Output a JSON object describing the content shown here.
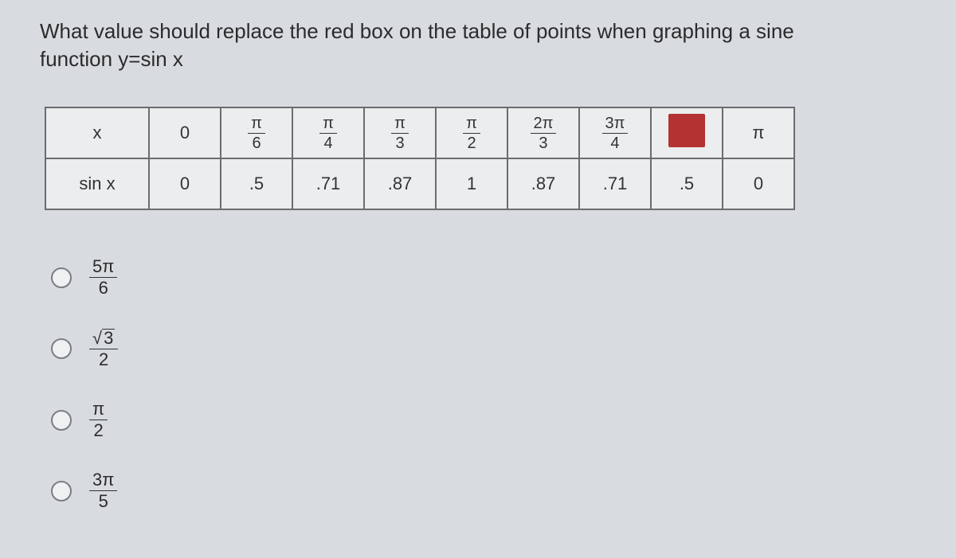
{
  "question": "What value should replace the red box on the table of points when graphing a sine function y=sin x",
  "table": {
    "row1_label": "x",
    "row2_label": "sin x",
    "x_values": [
      {
        "type": "plain",
        "text": "0"
      },
      {
        "type": "frac",
        "num": "π",
        "den": "6"
      },
      {
        "type": "frac",
        "num": "π",
        "den": "4"
      },
      {
        "type": "frac",
        "num": "π",
        "den": "3"
      },
      {
        "type": "frac",
        "num": "π",
        "den": "2"
      },
      {
        "type": "frac",
        "num": "2π",
        "den": "3"
      },
      {
        "type": "frac",
        "num": "3π",
        "den": "4"
      },
      {
        "type": "redbox"
      },
      {
        "type": "plain",
        "text": "π"
      }
    ],
    "sin_values": [
      "0",
      ".5",
      ".71",
      ".87",
      "1",
      ".87",
      ".71",
      ".5",
      "0"
    ],
    "border_color": "#6a6c6e",
    "cell_bg": "#ebedef",
    "redbox_color": "#b43232"
  },
  "options": [
    {
      "type": "frac",
      "num": "5π",
      "den": "6"
    },
    {
      "type": "sqrtfrac",
      "num_text": "3",
      "den": "2"
    },
    {
      "type": "frac",
      "num": "π",
      "den": "2"
    },
    {
      "type": "frac",
      "num": "3π",
      "den": "5"
    }
  ],
  "colors": {
    "page_bg": "#d8dce0",
    "text": "#2b2b2b",
    "radio_border": "#7a7e82"
  }
}
